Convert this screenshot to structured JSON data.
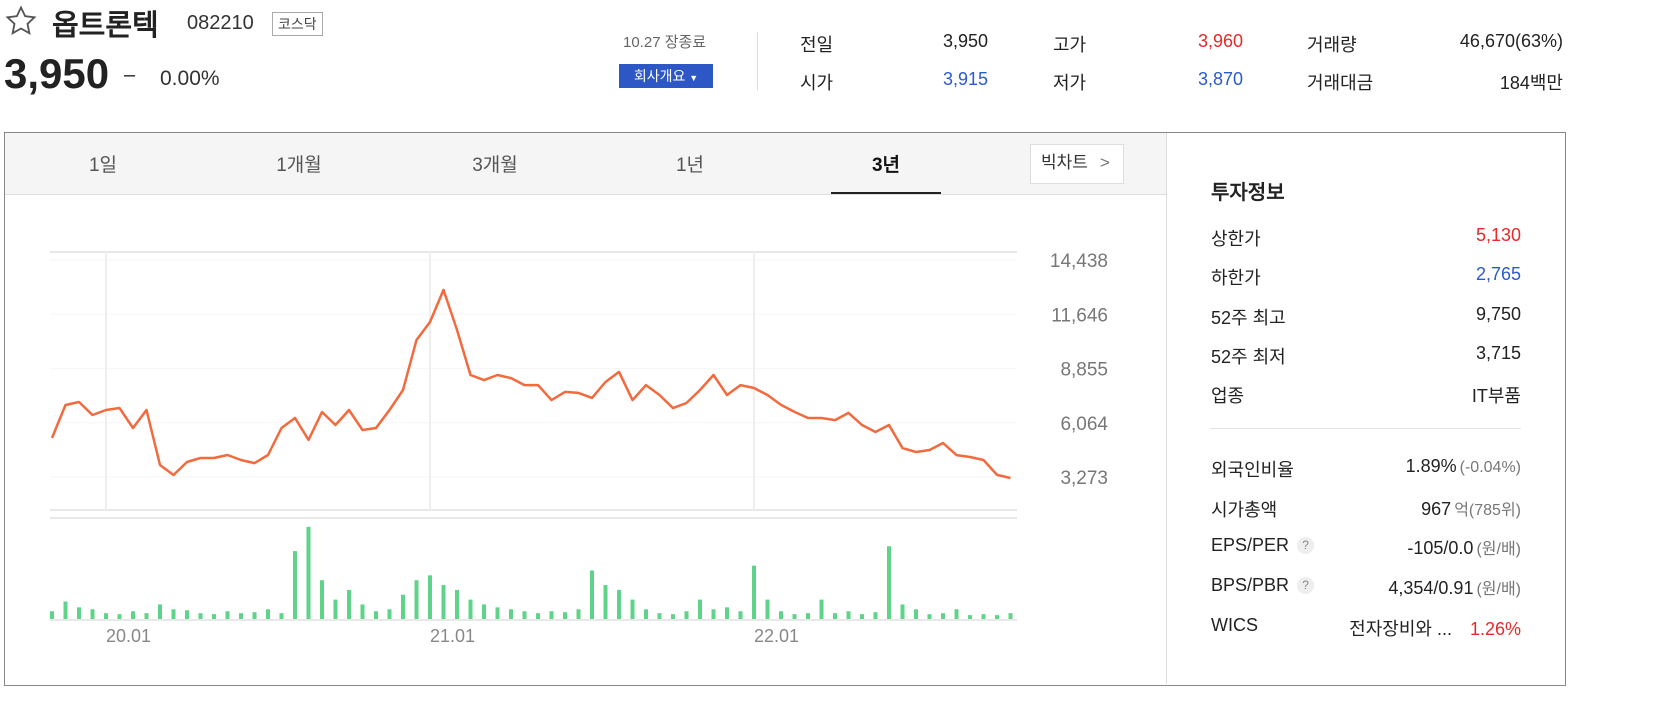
{
  "header": {
    "name": "옵트론텍",
    "code": "082210",
    "market": "코스닥",
    "price": "3,950",
    "change_mark": "–",
    "change_rate": "0.00%",
    "status": "10.27 장종료",
    "company_button": "회사개요"
  },
  "quote": [
    {
      "label": "전일",
      "value": "3,950"
    },
    {
      "label": "시가",
      "value": "3,915"
    },
    {
      "label": "고가",
      "value": "3,960"
    },
    {
      "label": "저가",
      "value": "3,870"
    },
    {
      "label": "거래량",
      "value": "46,670(63%)"
    },
    {
      "label": "거래대금",
      "value": "184백만"
    }
  ],
  "tabs": {
    "items": [
      "1일",
      "1개월",
      "3개월",
      "1년",
      "3년"
    ],
    "active": 4,
    "big_chart": "빅차트"
  },
  "invest": {
    "title": "투자정보",
    "help": "?",
    "rows": [
      {
        "label": "상한가",
        "value": "5,130"
      },
      {
        "label": "하한가",
        "value": "2,765"
      },
      {
        "label": "52주 최고",
        "value": "9,750"
      },
      {
        "label": "52주 최저",
        "value": "3,715"
      },
      {
        "label": "업종",
        "value": "IT부품"
      }
    ],
    "rows2": [
      {
        "label": "외국인비율",
        "value": "1.89%",
        "note": "(-0.04%)"
      },
      {
        "label": "시가총액",
        "value": "967",
        "note": "억(785위)"
      },
      {
        "label": "EPS/PER",
        "value": "-105/0.0",
        "note": "(원/배)"
      },
      {
        "label": "BPS/PBR",
        "value": "4,354/0.91",
        "note": "(원/배)"
      },
      {
        "label": "WICS",
        "value": "전자장비와 ...",
        "note": "1.26%"
      }
    ]
  },
  "chart_data": [
    {
      "type": "line",
      "color": "#f26a3d",
      "grid": true,
      "categories": [
        null,
        null,
        null,
        null,
        "20.01",
        null,
        null,
        null,
        null,
        null,
        null,
        null,
        null,
        null,
        null,
        null,
        null,
        null,
        null,
        null,
        null,
        null,
        null,
        null,
        null,
        null,
        null,
        null,
        "21.01",
        null,
        null,
        null,
        null,
        null,
        null,
        null,
        null,
        null,
        null,
        null,
        null,
        null,
        null,
        null,
        null,
        null,
        null,
        null,
        null,
        null,
        null,
        null,
        "22.01",
        null,
        null,
        null,
        null,
        null,
        null,
        null,
        null,
        null,
        null,
        null,
        null,
        null,
        null,
        null,
        null,
        null,
        null,
        null
      ],
      "values": [
        5280,
        6977,
        7132,
        6463,
        6720,
        6823,
        5794,
        6720,
        3890,
        3376,
        4045,
        4250,
        4250,
        4405,
        4150,
        3990,
        4405,
        5794,
        6308,
        5180,
        6617,
        5950,
        6720,
        5690,
        5794,
        6720,
        7750,
        10320,
        11250,
        12900,
        10840,
        8520,
        8260,
        8520,
        8360,
        8000,
        8000,
        7230,
        7650,
        7600,
        7340,
        8160,
        8680,
        7230,
        8000,
        7490,
        6820,
        7080,
        7750,
        8520,
        7490,
        8000,
        7850,
        7490,
        6980,
        6620,
        6310,
        6310,
        6200,
        6570,
        5950,
        5590,
        5950,
        4760,
        4560,
        4660,
        5020,
        4400,
        4300,
        4150,
        3380,
        3220
      ],
      "ylim": [
        1575,
        14952
      ],
      "yticks": [
        {
          "value": 3273,
          "label": "3,273"
        },
        {
          "value": 6064,
          "label": "6,064"
        },
        {
          "value": 8855,
          "label": "8,855"
        },
        {
          "value": 11646,
          "label": "11,646"
        },
        {
          "value": 14438,
          "label": "14,438"
        }
      ]
    },
    {
      "type": "bar",
      "color": "#5fd38a",
      "ylim": [
        0,
        100
      ],
      "values": [
        8,
        18,
        12,
        10,
        6,
        5,
        8,
        6,
        15,
        10,
        9,
        6,
        5,
        8,
        6,
        7,
        10,
        6,
        70,
        95,
        40,
        20,
        30,
        15,
        8,
        10,
        25,
        40,
        45,
        35,
        30,
        20,
        15,
        12,
        10,
        8,
        6,
        8,
        7,
        10,
        50,
        35,
        30,
        20,
        10,
        6,
        5,
        8,
        20,
        10,
        12,
        8,
        55,
        20,
        8,
        5,
        6,
        20,
        6,
        8,
        5,
        7,
        75,
        15,
        10,
        5,
        6,
        10,
        4,
        5,
        4,
        6
      ]
    }
  ]
}
